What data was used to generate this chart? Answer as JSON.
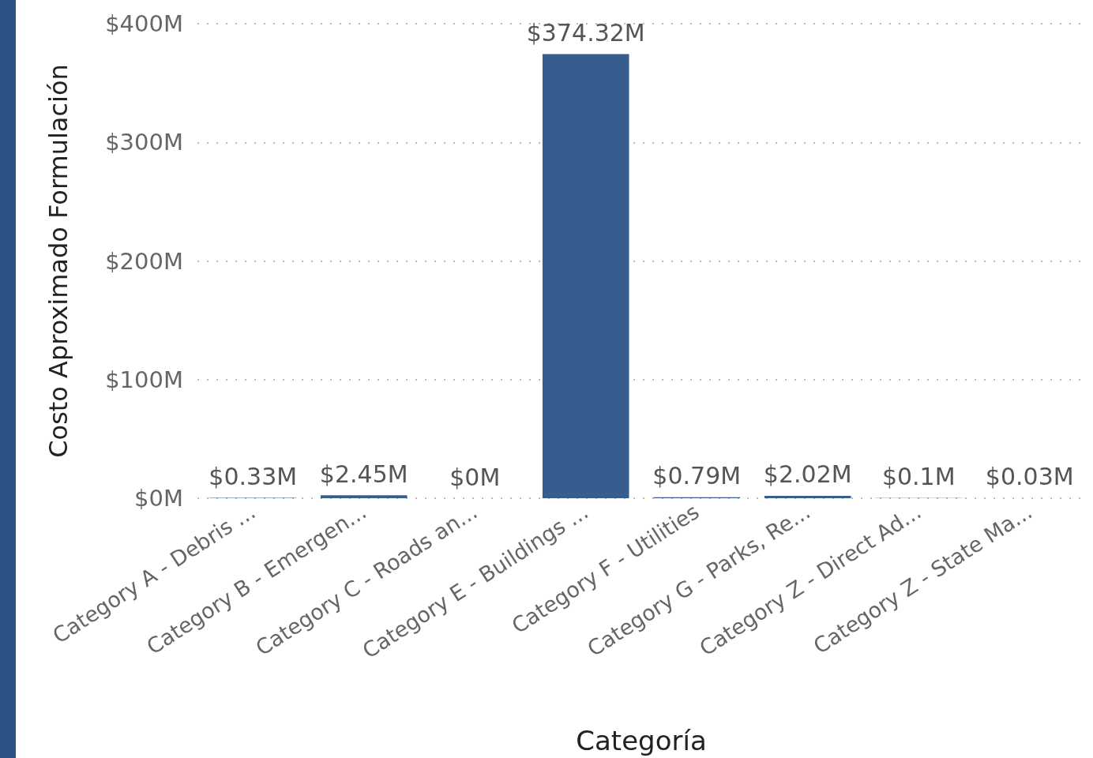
{
  "chart_data": {
    "type": "bar",
    "xlabel": "Categoría",
    "ylabel": "Costo Aproximado Formulación",
    "categories": [
      "Category A - Debris ...",
      "Category B - Emergen...",
      "Category C - Roads an...",
      "Category E - Buildings ...",
      "Category F - Utilities",
      "Category G - Parks, Re...",
      "Category Z - Direct Ad...",
      "Category Z - State Ma..."
    ],
    "values": [
      0.33,
      2.45,
      0,
      374.32,
      0.79,
      2.02,
      0.1,
      0.03
    ],
    "value_labels": [
      "$0.33M",
      "$2.45M",
      "$0M",
      "$374.32M",
      "$0.79M",
      "$2.02M",
      "$0.1M",
      "$0.03M"
    ],
    "color": "#365d8e",
    "ylim": [
      0,
      400
    ],
    "yticks": [
      {
        "value": 0,
        "label": "$0M"
      },
      {
        "value": 100,
        "label": "$100M"
      },
      {
        "value": 200,
        "label": "$200M"
      },
      {
        "value": 300,
        "label": "$300M"
      },
      {
        "value": 400,
        "label": "$400M"
      }
    ],
    "grid": "y"
  }
}
